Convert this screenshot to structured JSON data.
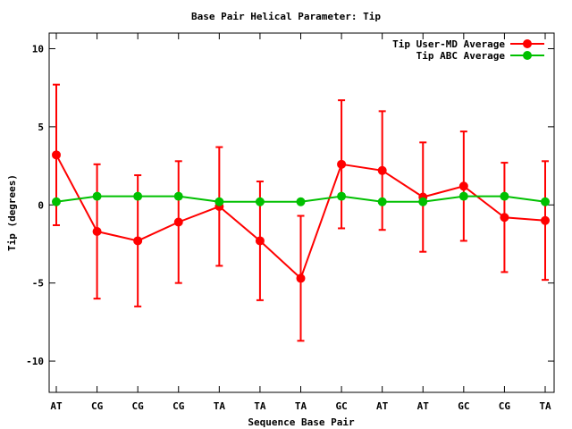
{
  "chart_data": {
    "type": "line",
    "title": "Base Pair Helical Parameter: Tip",
    "xlabel": "Sequence Base Pair",
    "ylabel": "Tip (degrees)",
    "ylim": [
      -12,
      11
    ],
    "yticks": [
      -10,
      -5,
      0,
      5,
      10
    ],
    "grid": false,
    "legend": "top-right",
    "categories": [
      "AT",
      "CG",
      "CG",
      "CG",
      "TA",
      "TA",
      "TA",
      "GC",
      "AT",
      "AT",
      "GC",
      "CG",
      "TA"
    ],
    "series": [
      {
        "name": "Tip User-MD Average",
        "color": "#ff0000",
        "values": [
          3.2,
          -1.7,
          -2.3,
          -1.1,
          -0.1,
          -2.3,
          -4.7,
          2.6,
          2.2,
          0.5,
          1.2,
          -0.8,
          -1.0
        ],
        "error": [
          4.5,
          4.3,
          4.2,
          3.9,
          3.8,
          3.8,
          4.0,
          4.1,
          3.8,
          3.5,
          3.5,
          3.5,
          3.8
        ]
      },
      {
        "name": "Tip ABC Average",
        "color": "#00c000",
        "values": [
          0.2,
          0.55,
          0.55,
          0.55,
          0.2,
          0.2,
          0.2,
          0.55,
          0.2,
          0.2,
          0.55,
          0.55,
          0.2
        ]
      }
    ]
  }
}
